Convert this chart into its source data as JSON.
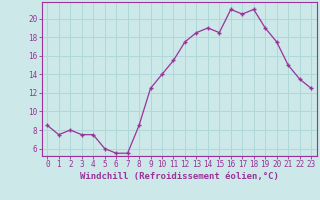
{
  "x": [
    0,
    1,
    2,
    3,
    4,
    5,
    6,
    7,
    8,
    9,
    10,
    11,
    12,
    13,
    14,
    15,
    16,
    17,
    18,
    19,
    20,
    21,
    22,
    23
  ],
  "y": [
    8.5,
    7.5,
    8.0,
    7.5,
    7.5,
    6.0,
    5.5,
    5.5,
    8.5,
    12.5,
    14.0,
    15.5,
    17.5,
    18.5,
    19.0,
    18.5,
    21.0,
    20.5,
    21.0,
    19.0,
    17.5,
    15.0,
    13.5,
    12.5
  ],
  "line_color": "#993399",
  "marker": "+",
  "bg_color": "#cce8e8",
  "grid_color": "#b0d8d8",
  "xlabel": "Windchill (Refroidissement éolien,°C)",
  "ylabel_ticks": [
    6,
    8,
    10,
    12,
    14,
    16,
    18,
    20
  ],
  "ylim": [
    5.2,
    21.8
  ],
  "xlim": [
    -0.5,
    23.5
  ],
  "tick_color": "#993399",
  "label_color": "#993399",
  "axis_color": "#993399",
  "font_size": 5.5,
  "xlabel_fontsize": 6.5
}
